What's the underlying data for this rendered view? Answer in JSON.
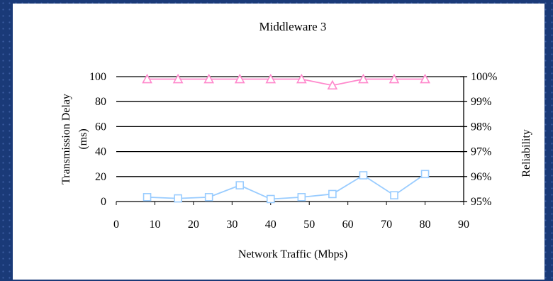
{
  "chart_data": {
    "type": "line",
    "title": "Middleware 3",
    "xlabel": "Network Traffic (Mbps)",
    "ylabel": "Transmission Delay\n(ms)",
    "y2label": "Reliability",
    "xlim": [
      0,
      90
    ],
    "ylim": [
      0,
      100
    ],
    "y2lim": [
      0.95,
      1.0
    ],
    "xticks": [
      "0",
      "10",
      "20",
      "30",
      "40",
      "50",
      "60",
      "70",
      "80",
      "90"
    ],
    "yticks": [
      "0",
      "20",
      "40",
      "60",
      "80",
      "100"
    ],
    "y2ticks": [
      "95%",
      "96%",
      "97%",
      "98%",
      "99%",
      "100%"
    ],
    "grid": true,
    "x": [
      8,
      16,
      24,
      32,
      40,
      48,
      56,
      64,
      72,
      80
    ],
    "series": [
      {
        "axis": "left",
        "marker": "square",
        "color": "#99ccff",
        "values": [
          3.5,
          2.5,
          3.5,
          13,
          2,
          3.5,
          6,
          21,
          5,
          22
        ]
      },
      {
        "axis": "right",
        "marker": "triangle",
        "color": "#ff88cc",
        "values": [
          0.999,
          0.999,
          0.999,
          0.999,
          0.999,
          0.999,
          0.9965,
          0.999,
          0.999,
          0.999
        ]
      }
    ]
  }
}
